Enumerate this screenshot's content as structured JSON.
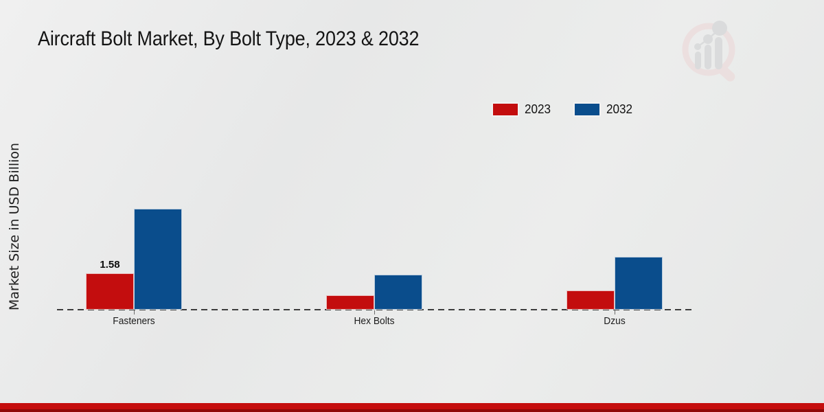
{
  "title": "Aircraft Bolt Market, By Bolt Type, 2023 & 2032",
  "y_axis_label": "Market Size in USD Billion",
  "legend": {
    "items": [
      {
        "label": "2023",
        "color": "#c30d0e"
      },
      {
        "label": "2032",
        "color": "#0a4d8c"
      }
    ]
  },
  "chart_data": {
    "type": "bar",
    "categories": [
      "Fasteners",
      "Hex Bolts",
      "Dzus"
    ],
    "series": [
      {
        "name": "2023",
        "color": "#c30d0e",
        "values": [
          1.58,
          0.64,
          0.85
        ]
      },
      {
        "name": "2032",
        "color": "#0a4d8c",
        "values": [
          4.38,
          1.53,
          2.3
        ]
      }
    ],
    "title": "Aircraft Bolt Market, By Bolt Type, 2023 & 2032",
    "xlabel": "",
    "ylabel": "Market Size in USD Billion",
    "ylim": [
      0,
      5
    ],
    "grid": false,
    "legend_position": "top-right",
    "data_labels": [
      {
        "series": "2023",
        "category": "Fasteners",
        "text": "1.58"
      }
    ]
  },
  "watermark_icon": "market-research-future-logo",
  "colors": {
    "background": "#e9eaea",
    "baseline_dash": "#3d3d3d",
    "bottom_band": "#c50d0d",
    "bottom_band_dark": "#8f0808",
    "series_2023": "#c30d0e",
    "series_2032": "#0a4d8c"
  }
}
